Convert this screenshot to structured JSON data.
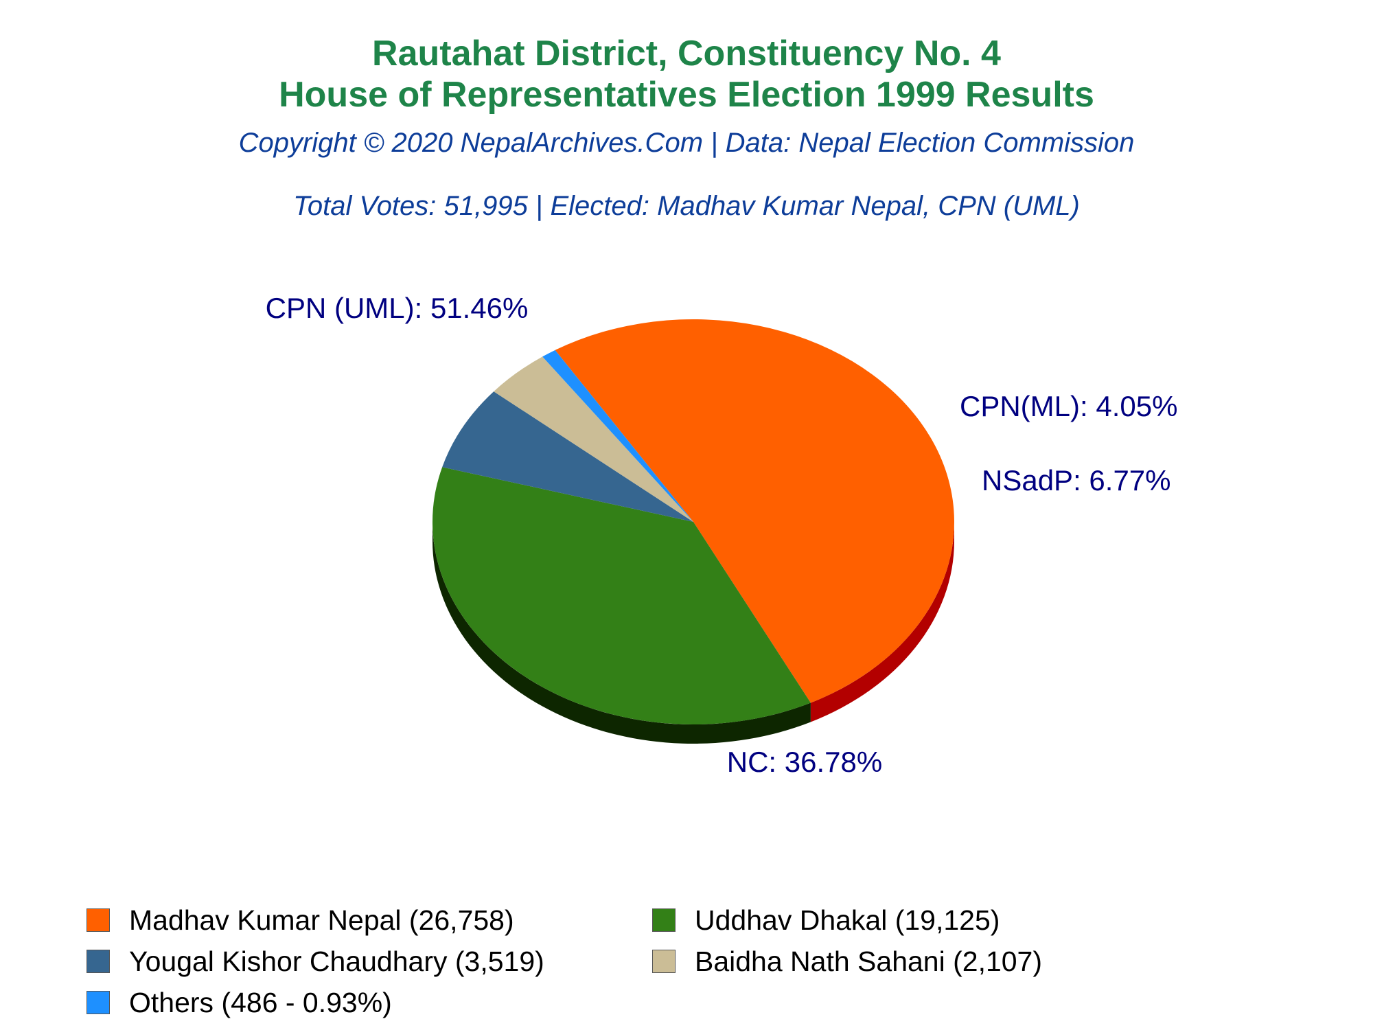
{
  "chart_data": {
    "type": "pie",
    "title": "Rautahat District, Constituency No. 4",
    "title_line2": "House of Representatives Election 1999 Results",
    "subtitle": "Copyright © 2020 NepalArchives.Com | Data: Nepal Election Commission",
    "summary": "Total Votes: 51,995 | Elected: Madhav Kumar Nepal, CPN (UML)",
    "slices": [
      {
        "label": "CPN (UML): 51.46%",
        "value": 51.46,
        "color": "#ff6000",
        "side_color": "#b30000"
      },
      {
        "label": "NC: 36.78%",
        "value": 36.78,
        "color": "#338017",
        "side_color": "#0d2600"
      },
      {
        "label": "NSadP: 6.77%",
        "value": 6.77,
        "color": "#366690",
        "side_color": "#1a3350"
      },
      {
        "label": "CPN(ML): 4.05%",
        "value": 4.05,
        "color": "#cbbd96",
        "side_color": "#8a7d5a"
      },
      {
        "label": "",
        "value": 0.93,
        "color": "#1e90ff",
        "side_color": "#1060b0"
      }
    ],
    "legend": [
      {
        "text": "Madhav Kumar Nepal (26,758)",
        "color": "#ff6000"
      },
      {
        "text": "Uddhav Dhakal (19,125)",
        "color": "#338017"
      },
      {
        "text": "Yougal Kishor Chaudhary (3,519)",
        "color": "#366690"
      },
      {
        "text": "Baidha Nath Sahani (2,107)",
        "color": "#cbbd96"
      },
      {
        "text": "Others (486 - 0.93%)",
        "color": "#1e90ff"
      }
    ],
    "label_color": "#000080"
  }
}
